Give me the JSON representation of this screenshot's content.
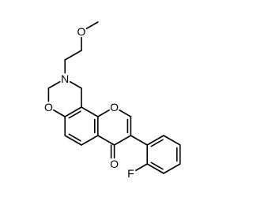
{
  "atoms": [
    {
      "label": "O"
    },
    {
      "label": "N"
    },
    {
      "label": "O"
    },
    {
      "label": "O"
    },
    {
      "label": "O"
    },
    {
      "label": "F"
    }
  ]
}
